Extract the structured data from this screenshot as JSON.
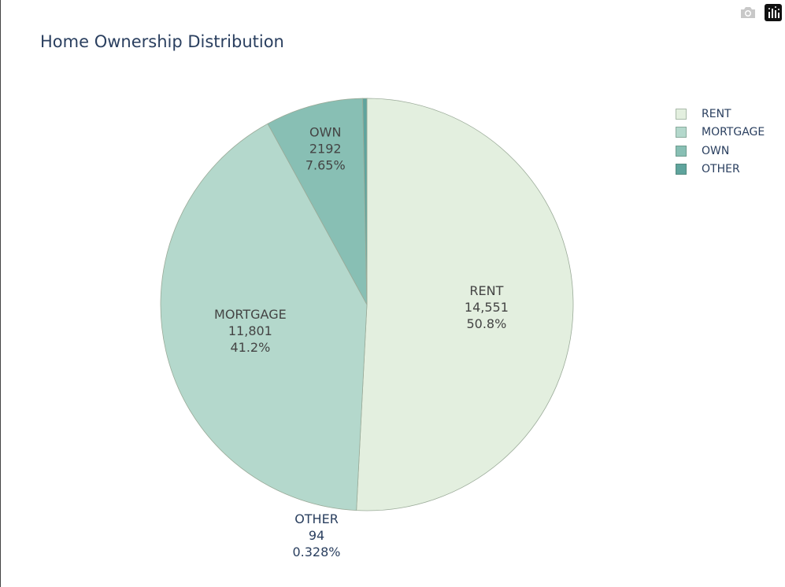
{
  "chart_data": {
    "type": "pie",
    "title": "Home Ownership Distribution",
    "categories": [
      "RENT",
      "MORTGAGE",
      "OWN",
      "OTHER"
    ],
    "values": [
      14551,
      11801,
      2192,
      94
    ],
    "value_labels": [
      "14,551",
      "11,801",
      "2192",
      "94"
    ],
    "percent_labels": [
      "50.8%",
      "41.2%",
      "7.65%",
      "0.328%"
    ],
    "colors": [
      "#e3efdf",
      "#b4d8cc",
      "#88bfb4",
      "#5fa49d"
    ],
    "direction": "clockwise",
    "rotation_start": "top",
    "legend_position": "top-right"
  },
  "legend": {
    "items": [
      {
        "label": "RENT",
        "color": "#e3efdf"
      },
      {
        "label": "MORTGAGE",
        "color": "#b4d8cc"
      },
      {
        "label": "OWN",
        "color": "#88bfb4"
      },
      {
        "label": "OTHER",
        "color": "#5fa49d"
      }
    ]
  },
  "modebar": {
    "icons": [
      "camera-icon",
      "plotly-logo-icon"
    ]
  }
}
